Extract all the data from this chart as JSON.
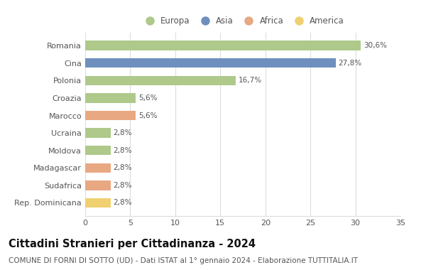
{
  "categories": [
    "Romania",
    "Cina",
    "Polonia",
    "Croazia",
    "Marocco",
    "Ucraina",
    "Moldova",
    "Madagascar",
    "Sudafrica",
    "Rep. Dominicana"
  ],
  "values": [
    30.6,
    27.8,
    16.7,
    5.6,
    5.6,
    2.8,
    2.8,
    2.8,
    2.8,
    2.8
  ],
  "labels": [
    "30,6%",
    "27,8%",
    "16,7%",
    "5,6%",
    "5,6%",
    "2,8%",
    "2,8%",
    "2,8%",
    "2,8%",
    "2,8%"
  ],
  "colors": [
    "#aec98a",
    "#6f8fbf",
    "#aec98a",
    "#aec98a",
    "#e8a882",
    "#aec98a",
    "#aec98a",
    "#e8a882",
    "#e8a882",
    "#f0d070"
  ],
  "legend_labels": [
    "Europa",
    "Asia",
    "Africa",
    "America"
  ],
  "legend_colors": [
    "#aec98a",
    "#6f8fbf",
    "#e8a882",
    "#f0d070"
  ],
  "title": "Cittadini Stranieri per Cittadinanza - 2024",
  "subtitle": "COMUNE DI FORNI DI SOTTO (UD) - Dati ISTAT al 1° gennaio 2024 - Elaborazione TUTTITALIA.IT",
  "xlim": [
    0,
    35
  ],
  "xticks": [
    0,
    5,
    10,
    15,
    20,
    25,
    30,
    35
  ],
  "background_color": "#ffffff",
  "grid_color": "#dddddd",
  "bar_height": 0.55,
  "title_fontsize": 10.5,
  "subtitle_fontsize": 7.5,
  "label_fontsize": 7.5,
  "tick_fontsize": 8,
  "legend_fontsize": 8.5
}
